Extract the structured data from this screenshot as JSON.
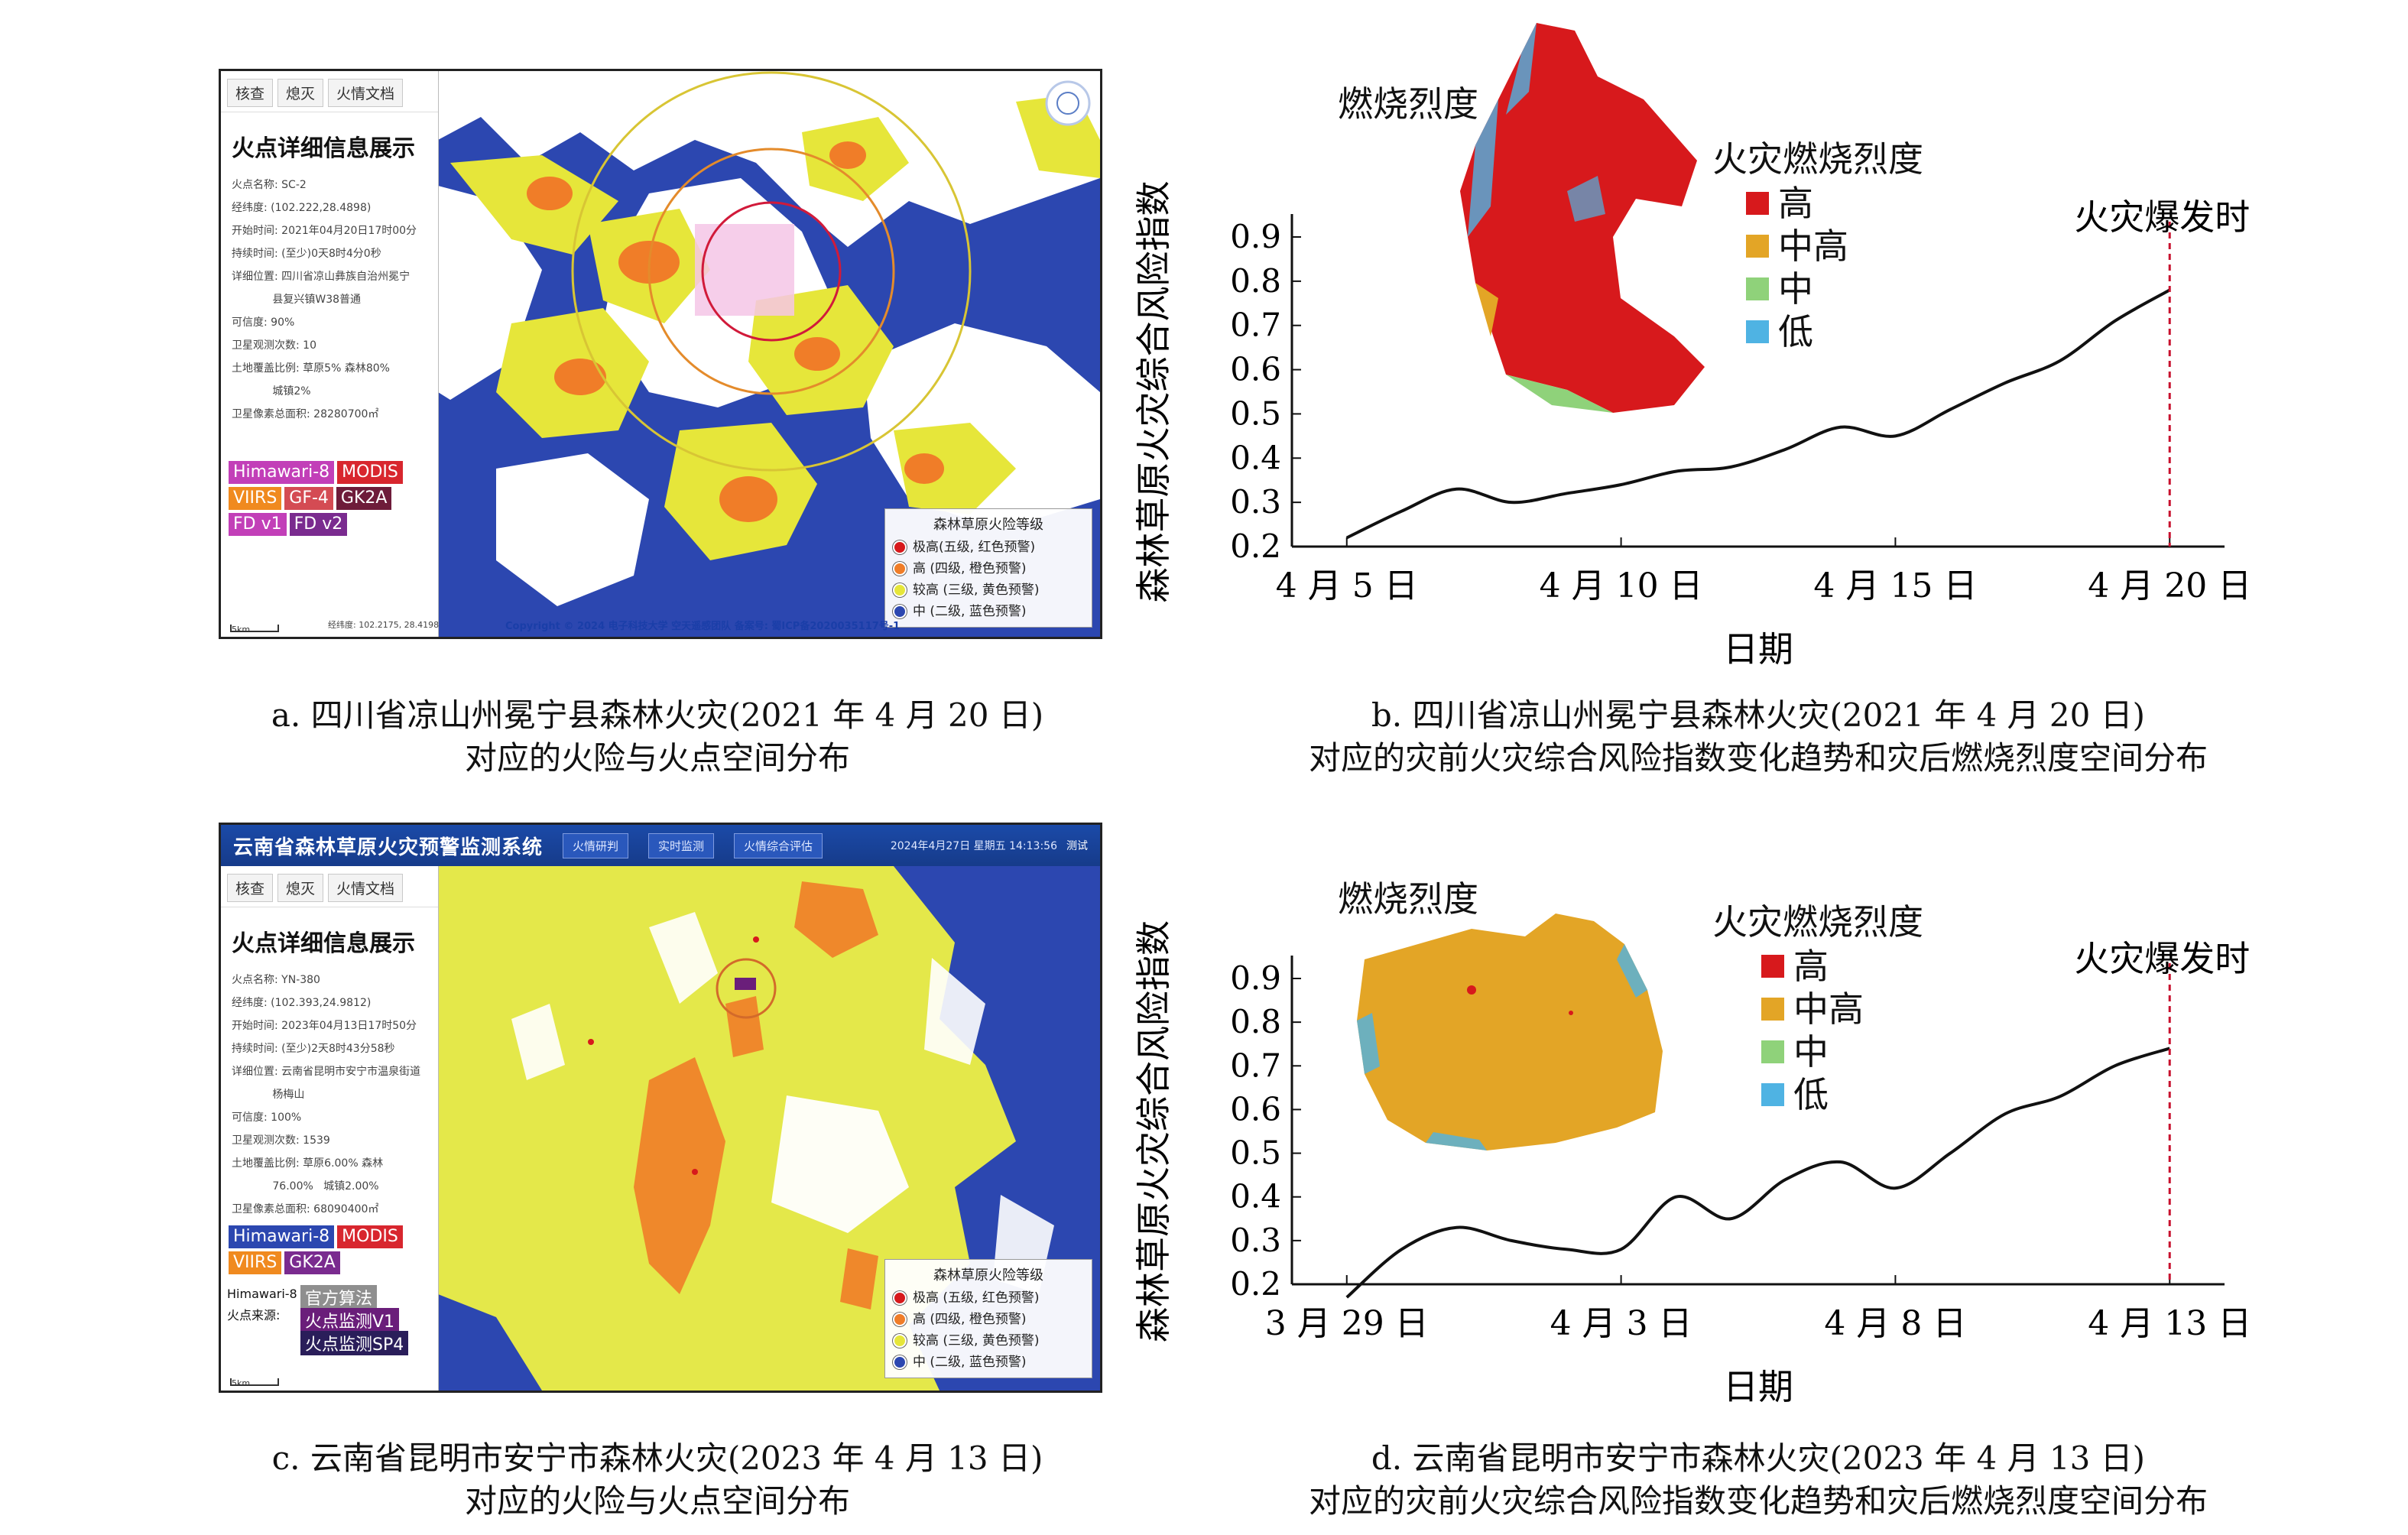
{
  "panel_a": {
    "tabs": [
      "核查",
      "熄灭",
      "火情文档"
    ],
    "title": "火点详细信息展示",
    "rows": [
      "火点名称: SC-2",
      "经纬度: (102.222,28.4898)",
      "开始时间: 2021年04月20日17时00分",
      "持续时间: (至少)0天8时4分0秒",
      "详细位置: 四川省凉山彝族自治州冕宁",
      "            县复兴镇W38普通",
      "可信度: 90%",
      "卫星观测次数: 10",
      "土地覆盖比例: 草原5%   森林80%",
      "            城镇2%",
      "卫星像素总面积: 28280700㎡"
    ],
    "sources": [
      {
        "label": "Himawari-8",
        "color": "#c23fb8"
      },
      {
        "label": "MODIS",
        "color": "#d8262e"
      },
      {
        "label": "VIIRS",
        "color": "#f08a1f"
      },
      {
        "label": "GF-4",
        "color": "#d44b53"
      },
      {
        "label": "GK2A",
        "color": "#6e1c3a"
      },
      {
        "label": "FD v1",
        "color": "#c23fb8"
      },
      {
        "label": "FD v2",
        "color": "#7a2b8f"
      }
    ],
    "legend": {
      "title": "森林草原火险等级",
      "items": [
        {
          "label": "极高(五级, 红色预警)",
          "color": "#d7191c"
        },
        {
          "label": "高 (四级, 橙色预警)",
          "color": "#f07d28"
        },
        {
          "label": "较高 (三级, 黄色预警)",
          "color": "#e6e63a"
        },
        {
          "label": "中 (二级, 蓝色预警)",
          "color": "#2c47b0"
        }
      ]
    },
    "scale": "5km",
    "coord": "经纬度: 102.2175, 28.4198",
    "copyright": "Copyright © 2024 电子科技大学 空天遥感团队  备案号: 蜀ICP备2020035117号-1"
  },
  "panel_c": {
    "appbar": {
      "name": "云南省森林草原火灾预警监测系统",
      "buttons": [
        "火情研判",
        "实时监测",
        "火情综合评估"
      ],
      "date": "2024年4月27日 星期五 14:13:56",
      "user": "测试"
    },
    "tabs": [
      "核查",
      "熄灭",
      "火情文档"
    ],
    "title": "火点详细信息展示",
    "rows": [
      "火点名称: YN-380",
      "经纬度: (102.393,24.9812)",
      "开始时间: 2023年04月13日17时50分",
      "持续时间: (至少)2天8时43分58秒",
      "详细位置: 云南省昆明市安宁市温泉街道",
      "            杨梅山",
      "可信度: 100%",
      "卫星观测次数: 1539",
      "土地覆盖比例: 草原6.00%   森林",
      "            76.00%   城镇2.00%",
      "卫星像素总面积: 68090400㎡"
    ],
    "sources": [
      {
        "label": "Himawari-8",
        "color": "#2c47b0"
      },
      {
        "label": "MODIS",
        "color": "#d8262e"
      },
      {
        "label": "VIIRS",
        "color": "#f08a1f"
      },
      {
        "label": "GK2A",
        "color": "#7a2b8f"
      }
    ],
    "algo_label_1": "Himawari-8",
    "algo_label_2": "火点来源:",
    "algos": [
      {
        "label": "官方算法",
        "color": "#8f8f8f"
      },
      {
        "label": "火点监测V1",
        "color": "#6a1e7a"
      },
      {
        "label": "火点监测SP4",
        "color": "#2a1e5a"
      }
    ],
    "legend": {
      "title": "森林草原火险等级",
      "items": [
        {
          "label": "极高 (五级, 红色预警)",
          "color": "#d7191c"
        },
        {
          "label": "高 (四级, 橙色预警)",
          "color": "#f07d28"
        },
        {
          "label": "较高 (三级, 黄色预警)",
          "color": "#e6e63a"
        },
        {
          "label": "中 (二级, 蓝色预警)",
          "color": "#2c47b0"
        }
      ]
    },
    "scale": "5km"
  },
  "captions": {
    "a1": "a. 四川省凉山州冕宁县森林火灾(2021 年 4 月 20 日)",
    "a2": "对应的火险与火点空间分布",
    "b1": "b. 四川省凉山州冕宁县森林火灾(2021 年 4 月 20 日)",
    "b2": "对应的灾前火灾综合风险指数变化趋势和灾后燃烧烈度空间分布",
    "c1": "c. 云南省昆明市安宁市森林火灾(2023 年 4 月 13 日)",
    "c2": "对应的火险与火点空间分布",
    "d1": "d. 云南省昆明市安宁市森林火灾(2023 年 4 月 13 日)",
    "d2": "对应的灾前火灾综合风险指数变化趋势和灾后燃烧烈度空间分布"
  },
  "severity_legend": {
    "title": "火灾燃烧烈度",
    "items": [
      {
        "label": "高",
        "color": "#d7191c"
      },
      {
        "label": "中高",
        "color": "#e3a526"
      },
      {
        "label": "中",
        "color": "#8fd27a"
      },
      {
        "label": "低",
        "color": "#4fb3e3"
      }
    ]
  },
  "inset_title": "燃烧烈度",
  "event_label": "火灾爆发时",
  "chart_data": [
    {
      "type": "line",
      "xlabel": "日期",
      "ylabel": "森林草原火灾综合风险指数",
      "ylim": [
        0.2,
        0.9
      ],
      "yticks": [
        0.2,
        0.3,
        0.4,
        0.5,
        0.6,
        0.7,
        0.8,
        0.9
      ],
      "xticks": [
        {
          "x": 5,
          "label": "4 月 5 日"
        },
        {
          "x": 10,
          "label": "4 月 10 日"
        },
        {
          "x": 15,
          "label": "4 月 15 日"
        },
        {
          "x": 20,
          "label": "4 月 20 日"
        }
      ],
      "xlim": [
        4,
        21
      ],
      "event_x": 20,
      "x": [
        5,
        6,
        7,
        8,
        9,
        10,
        11,
        12,
        13,
        14,
        15,
        16,
        17,
        18,
        19,
        20
      ],
      "values": [
        0.22,
        0.28,
        0.33,
        0.3,
        0.32,
        0.34,
        0.37,
        0.38,
        0.42,
        0.47,
        0.45,
        0.51,
        0.57,
        0.62,
        0.71,
        0.78
      ]
    },
    {
      "type": "line",
      "xlabel": "日期",
      "ylabel": "森林草原火灾综合风险指数",
      "ylim": [
        0.2,
        0.9
      ],
      "yticks": [
        0.2,
        0.3,
        0.4,
        0.5,
        0.6,
        0.7,
        0.8,
        0.9
      ],
      "xticks": [
        {
          "x": 0,
          "label": "3 月 29 日"
        },
        {
          "x": 5,
          "label": "4 月 3 日"
        },
        {
          "x": 10,
          "label": "4 月 8 日"
        },
        {
          "x": 15,
          "label": "4 月 13 日"
        }
      ],
      "xlim": [
        -1,
        16
      ],
      "event_x": 15,
      "x": [
        0,
        1,
        2,
        3,
        4,
        5,
        6,
        7,
        8,
        9,
        10,
        11,
        12,
        13,
        14,
        15
      ],
      "values": [
        0.17,
        0.28,
        0.33,
        0.3,
        0.28,
        0.28,
        0.4,
        0.35,
        0.44,
        0.48,
        0.42,
        0.5,
        0.59,
        0.63,
        0.7,
        0.74
      ]
    }
  ]
}
